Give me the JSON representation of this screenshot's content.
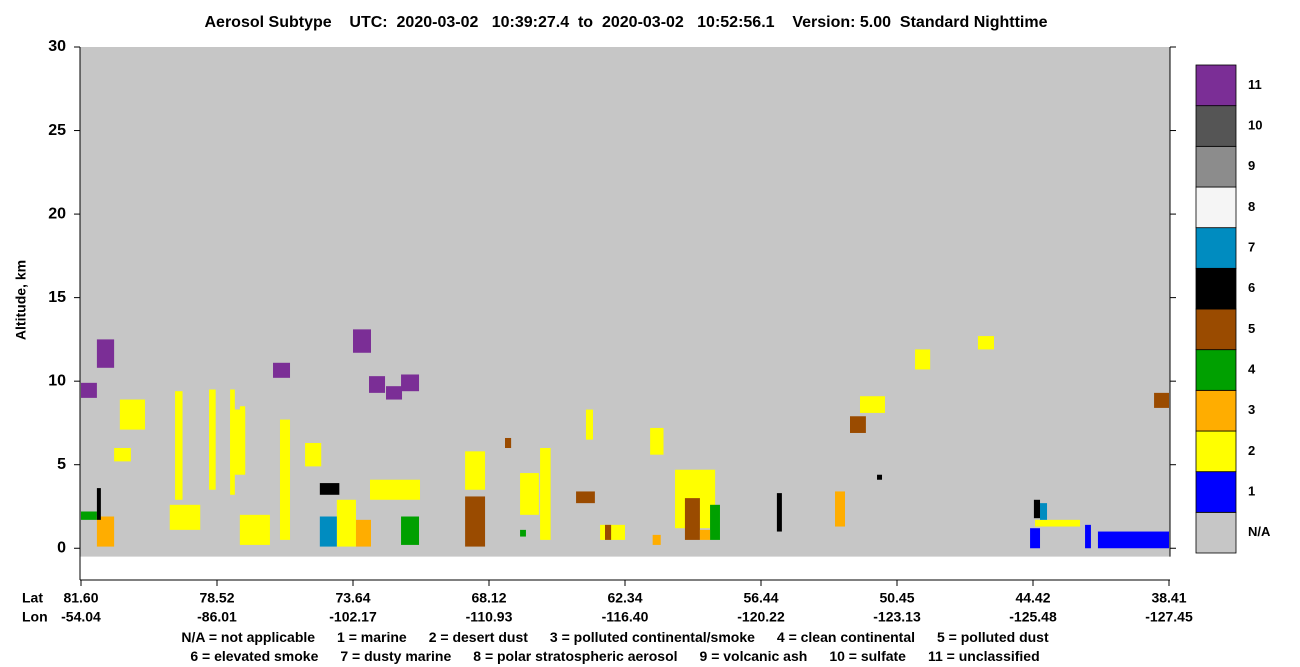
{
  "chart_data": {
    "type": "curtain",
    "title": "Aerosol Subtype    UTC:  2020-03-02   10:39:27.4  to  2020-03-02   10:52:56.1    Version: 5.00  Standard Nighttime",
    "y_label": "Altitude, km",
    "x_row_labels": [
      "Lat",
      "Lon"
    ],
    "xlim": [
      81.6,
      38.41
    ],
    "xticks": [
      {
        "value": 81.6,
        "label": "81.60"
      },
      {
        "value": 78.52,
        "label": "78.52"
      },
      {
        "value": 73.64,
        "label": "73.64"
      },
      {
        "value": 68.12,
        "label": "68.12"
      },
      {
        "value": 62.34,
        "label": "62.34"
      },
      {
        "value": 56.44,
        "label": "56.44"
      },
      {
        "value": 50.45,
        "label": "50.45"
      },
      {
        "value": 44.42,
        "label": "44.42"
      },
      {
        "value": 38.41,
        "label": "38.41"
      }
    ],
    "lon_labels": [
      "-54.04",
      "-86.01",
      "-102.17",
      "-110.93",
      "-116.40",
      "-120.22",
      "-123.13",
      "-125.48",
      "-127.45"
    ],
    "ylim": [
      -1.9,
      30
    ],
    "yticks": [
      0,
      5,
      10,
      15,
      20,
      25,
      30
    ],
    "data_bottom_alt": -0.5,
    "categories": [
      "N/A",
      "1",
      "2",
      "3",
      "4",
      "5",
      "6",
      "7",
      "8",
      "9",
      "10",
      "11"
    ],
    "colors": [
      "#c6c6c6",
      "#0000ff",
      "#ffff00",
      "#ffad00",
      "#00a000",
      "#9a4b00",
      "#000000",
      "#008cc0",
      "#f5f5f5",
      "#8c8c8c",
      "#555555",
      "#7b2e96"
    ],
    "subtype_names": [
      "N/A = not applicable",
      "1 = marine",
      "2 = desert dust",
      "3 = polluted continental/smoke",
      "4 = clean continental",
      "5 = polluted dust",
      "6 = elevated smoke",
      "7 = dusty marine",
      "8 = polar stratospheric aerosol",
      "9 = volcanic ash",
      "10 = sulfate",
      "11 = unclassified"
    ],
    "regions": [
      {
        "lat": [
          79.47,
          79.3
        ],
        "alt": [
          2.9,
          9.4
        ],
        "subtype": 2
      },
      {
        "lat": [
          78.7,
          78.55
        ],
        "alt": [
          3.5,
          9.5
        ],
        "subtype": 2
      },
      {
        "lat": [
          78.05,
          77.88
        ],
        "alt": [
          3.2,
          9.5
        ],
        "subtype": 2
      },
      {
        "lat": [
          77.7,
          77.51
        ],
        "alt": [
          4.5,
          8.5
        ],
        "subtype": 2
      },
      {
        "lat": [
          78.05,
          77.51
        ],
        "alt": [
          4.4,
          8.3
        ],
        "subtype": 2
      },
      {
        "lat": [
          80.72,
          80.15
        ],
        "alt": [
          7.1,
          8.9
        ],
        "subtype": 2
      },
      {
        "lat": [
          80.85,
          80.47
        ],
        "alt": [
          5.2,
          6.0
        ],
        "subtype": 2
      },
      {
        "lat": [
          79.59,
          78.9
        ],
        "alt": [
          1.1,
          2.6
        ],
        "subtype": 2
      },
      {
        "lat": [
          77.7,
          76.62
        ],
        "alt": [
          0.2,
          2.0
        ],
        "subtype": 2
      },
      {
        "lat": [
          76.26,
          75.9
        ],
        "alt": [
          0.5,
          7.7
        ],
        "subtype": 2
      },
      {
        "lat": [
          75.36,
          74.78
        ],
        "alt": [
          4.9,
          6.3
        ],
        "subtype": 2
      },
      {
        "lat": [
          74.22,
          73.52
        ],
        "alt": [
          0.1,
          2.9
        ],
        "subtype": 2
      },
      {
        "lat": [
          72.95,
          70.92
        ],
        "alt": [
          2.9,
          4.1
        ],
        "subtype": 2
      },
      {
        "lat": [
          69.09,
          68.28
        ],
        "alt": [
          3.5,
          5.8
        ],
        "subtype": 2
      },
      {
        "lat": [
          66.8,
          66.0
        ],
        "alt": [
          2.0,
          4.5
        ],
        "subtype": 2
      },
      {
        "lat": [
          65.95,
          65.5
        ],
        "alt": [
          0.5,
          6.0
        ],
        "subtype": 2
      },
      {
        "lat": [
          64.0,
          63.7
        ],
        "alt": [
          6.5,
          8.3
        ],
        "subtype": 2
      },
      {
        "lat": [
          63.4,
          62.34
        ],
        "alt": [
          0.5,
          1.4
        ],
        "subtype": 2
      },
      {
        "lat": [
          61.25,
          60.67
        ],
        "alt": [
          5.6,
          7.2
        ],
        "subtype": 2
      },
      {
        "lat": [
          60.17,
          58.43
        ],
        "alt": [
          1.2,
          4.7
        ],
        "subtype": 2
      },
      {
        "lat": [
          52.08,
          50.98
        ],
        "alt": [
          8.1,
          9.1
        ],
        "subtype": 2
      },
      {
        "lat": [
          49.65,
          48.98
        ],
        "alt": [
          10.7,
          11.9
        ],
        "subtype": 2
      },
      {
        "lat": [
          46.86,
          46.15
        ],
        "alt": [
          11.9,
          12.7
        ],
        "subtype": 2
      },
      {
        "lat": [
          44.33,
          42.34
        ],
        "alt": [
          1.3,
          1.7
        ],
        "subtype": 2
      },
      {
        "lat": [
          81.6,
          81.24
        ],
        "alt": [
          9.0,
          9.9
        ],
        "subtype": 11
      },
      {
        "lat": [
          81.24,
          80.85
        ],
        "alt": [
          10.8,
          12.5
        ],
        "subtype": 11
      },
      {
        "lat": [
          76.51,
          75.9
        ],
        "alt": [
          10.2,
          11.1
        ],
        "subtype": 11
      },
      {
        "lat": [
          73.64,
          72.91
        ],
        "alt": [
          11.7,
          13.1
        ],
        "subtype": 11
      },
      {
        "lat": [
          72.99,
          72.34
        ],
        "alt": [
          9.3,
          10.3
        ],
        "subtype": 11
      },
      {
        "lat": [
          72.3,
          71.65
        ],
        "alt": [
          8.9,
          9.7
        ],
        "subtype": 11
      },
      {
        "lat": [
          71.69,
          70.96
        ],
        "alt": [
          9.4,
          10.4
        ],
        "subtype": 11
      },
      {
        "lat": [
          81.6,
          81.24
        ],
        "alt": [
          1.7,
          2.2
        ],
        "subtype": 4
      },
      {
        "lat": [
          81.24,
          80.85
        ],
        "alt": [
          0.1,
          1.9
        ],
        "subtype": 3
      },
      {
        "lat": [
          81.24,
          81.15
        ],
        "alt": [
          1.7,
          3.6
        ],
        "subtype": 6
      },
      {
        "lat": [
          74.83,
          74.22
        ],
        "alt": [
          0.1,
          1.9
        ],
        "subtype": 7
      },
      {
        "lat": [
          73.52,
          72.91
        ],
        "alt": [
          0.1,
          1.7
        ],
        "subtype": 3
      },
      {
        "lat": [
          74.83,
          74.13
        ],
        "alt": [
          3.2,
          3.9
        ],
        "subtype": 6
      },
      {
        "lat": [
          71.69,
          70.96
        ],
        "alt": [
          0.2,
          1.9
        ],
        "subtype": 4
      },
      {
        "lat": [
          69.09,
          68.28
        ],
        "alt": [
          0.1,
          3.1
        ],
        "subtype": 5
      },
      {
        "lat": [
          64.42,
          63.62
        ],
        "alt": [
          2.7,
          3.4
        ],
        "subtype": 5
      },
      {
        "lat": [
          67.44,
          67.18
        ],
        "alt": [
          6.0,
          6.6
        ],
        "subtype": 5
      },
      {
        "lat": [
          66.8,
          66.55
        ],
        "alt": [
          0.7,
          1.1
        ],
        "subtype": 4
      },
      {
        "lat": [
          63.19,
          62.93
        ],
        "alt": [
          0.5,
          1.4
        ],
        "subtype": 5
      },
      {
        "lat": [
          61.14,
          60.79
        ],
        "alt": [
          0.2,
          0.8
        ],
        "subtype": 3
      },
      {
        "lat": [
          59.74,
          59.09
        ],
        "alt": [
          0.5,
          3.0
        ],
        "subtype": 5
      },
      {
        "lat": [
          58.65,
          58.22
        ],
        "alt": [
          0.5,
          2.6
        ],
        "subtype": 4
      },
      {
        "lat": [
          59.09,
          58.65
        ],
        "alt": [
          0.5,
          1.1
        ],
        "subtype": 3
      },
      {
        "lat": [
          55.74,
          55.52
        ],
        "alt": [
          1.0,
          3.3
        ],
        "subtype": 6
      },
      {
        "lat": [
          53.18,
          52.74
        ],
        "alt": [
          1.3,
          3.4
        ],
        "subtype": 3
      },
      {
        "lat": [
          52.52,
          51.82
        ],
        "alt": [
          6.9,
          7.9
        ],
        "subtype": 5
      },
      {
        "lat": [
          51.33,
          51.11
        ],
        "alt": [
          4.1,
          4.4
        ],
        "subtype": 6
      },
      {
        "lat": [
          44.11,
          43.8
        ],
        "alt": [
          1.7,
          2.7
        ],
        "subtype": 7
      },
      {
        "lat": [
          44.38,
          44.11
        ],
        "alt": [
          1.8,
          2.9
        ],
        "subtype": 6
      },
      {
        "lat": [
          44.55,
          44.11
        ],
        "alt": [
          0,
          1.2
        ],
        "subtype": 1
      },
      {
        "lat": [
          42.12,
          41.86
        ],
        "alt": [
          0,
          1.4
        ],
        "subtype": 1
      },
      {
        "lat": [
          41.55,
          38.41
        ],
        "alt": [
          0,
          1.0
        ],
        "subtype": 1
      },
      {
        "lat": [
          39.07,
          38.41
        ],
        "alt": [
          8.4,
          9.3
        ],
        "subtype": 5
      }
    ]
  }
}
